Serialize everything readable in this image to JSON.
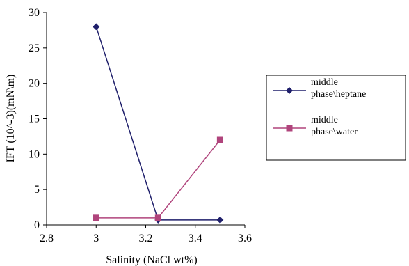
{
  "chart_data": {
    "type": "line",
    "xlabel": "Salinity (NaCl wt%)",
    "ylabel": "IFT (10^-3)(mN\\m)",
    "xlim": [
      2.8,
      3.6
    ],
    "ylim": [
      0,
      30
    ],
    "xticks": [
      "2.8",
      "3",
      "3.2",
      "3.4",
      "3.6"
    ],
    "yticks": [
      "0",
      "5",
      "10",
      "15",
      "20",
      "25",
      "30"
    ],
    "grid": false,
    "legend_position": "right",
    "series": [
      {
        "name_lines": [
          "middle",
          "phase\\heptane"
        ],
        "color": "#1f1f6b",
        "marker": "diamond",
        "points": [
          {
            "x": 3.0,
            "y": 28.0
          },
          {
            "x": 3.25,
            "y": 0.7
          },
          {
            "x": 3.5,
            "y": 0.7
          }
        ]
      },
      {
        "name_lines": [
          "middle",
          "phase\\water"
        ],
        "color": "#b0447c",
        "marker": "square",
        "points": [
          {
            "x": 3.0,
            "y": 1.0
          },
          {
            "x": 3.25,
            "y": 1.0
          },
          {
            "x": 3.5,
            "y": 12.0
          }
        ]
      }
    ]
  }
}
